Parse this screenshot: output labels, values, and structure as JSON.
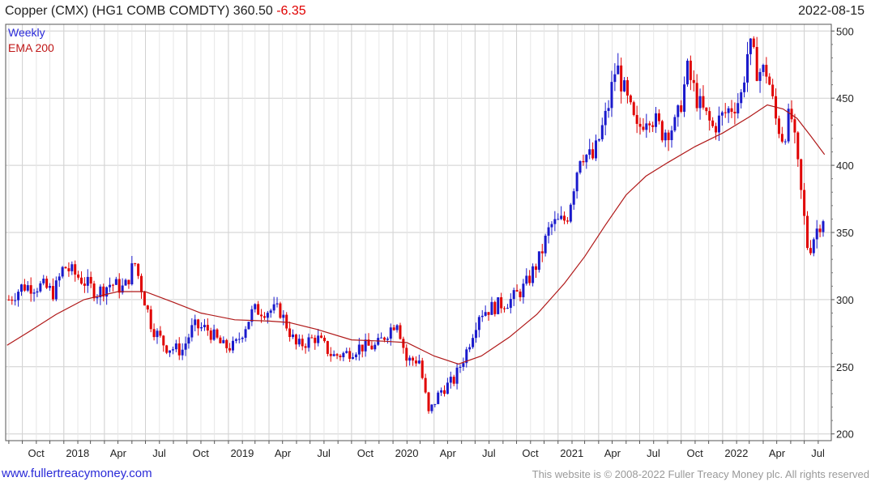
{
  "header": {
    "title": "Copper (CMX) (HG1 COMB COMDTY) 360.50",
    "change": "-6.35",
    "date": "2022-08-15"
  },
  "footer": {
    "site": "www.fullertreacymoney.com",
    "copyright": "This website is © 2008-2022 Fuller Treacy Money plc. All rights reserved"
  },
  "colors": {
    "up": "#1a1acc",
    "down": "#e00000",
    "ema": "#b01818",
    "grid": "#dcdcdc"
  },
  "chart_data": {
    "type": "line",
    "legend": [
      "Weekly",
      "EMA 200"
    ],
    "legend_placement": "top-left",
    "grid": true,
    "y_axis_side": "right",
    "ylim": [
      195,
      505
    ],
    "y_ticks": [
      200,
      250,
      300,
      350,
      400,
      450,
      500
    ],
    "x_range": [
      "2017-08-25",
      "2022-08-30"
    ],
    "x_ticks": [
      {
        "date": "2017-10-01",
        "label": "Oct"
      },
      {
        "date": "2018-01-01",
        "label": "2018"
      },
      {
        "date": "2018-04-01",
        "label": "Apr"
      },
      {
        "date": "2018-07-01",
        "label": "Jul"
      },
      {
        "date": "2018-10-01",
        "label": "Oct"
      },
      {
        "date": "2019-01-01",
        "label": "2019"
      },
      {
        "date": "2019-04-01",
        "label": "Apr"
      },
      {
        "date": "2019-07-01",
        "label": "Jul"
      },
      {
        "date": "2019-10-01",
        "label": "Oct"
      },
      {
        "date": "2020-01-01",
        "label": "2020"
      },
      {
        "date": "2020-04-01",
        "label": "Apr"
      },
      {
        "date": "2020-07-01",
        "label": "Jul"
      },
      {
        "date": "2020-10-01",
        "label": "Oct"
      },
      {
        "date": "2021-01-01",
        "label": "2021"
      },
      {
        "date": "2021-04-01",
        "label": "Apr"
      },
      {
        "date": "2021-07-01",
        "label": "Jul"
      },
      {
        "date": "2021-10-01",
        "label": "Oct"
      },
      {
        "date": "2022-01-01",
        "label": "2022"
      },
      {
        "date": "2022-04-01",
        "label": "Apr"
      },
      {
        "date": "2022-07-01",
        "label": "Jul"
      }
    ],
    "series": [
      {
        "name": "Weekly",
        "kind": "close",
        "points": [
          {
            "x": "2017-09-01",
            "y": 300
          },
          {
            "x": "2017-10-01",
            "y": 310
          },
          {
            "x": "2017-11-15",
            "y": 310
          },
          {
            "x": "2017-12-10",
            "y": 305
          },
          {
            "x": "2018-01-01",
            "y": 325
          },
          {
            "x": "2018-02-10",
            "y": 315
          },
          {
            "x": "2018-03-15",
            "y": 305
          },
          {
            "x": "2018-04-15",
            "y": 312
          },
          {
            "x": "2018-05-15",
            "y": 308
          },
          {
            "x": "2018-06-07",
            "y": 328
          },
          {
            "x": "2018-06-25",
            "y": 305
          },
          {
            "x": "2018-07-15",
            "y": 280
          },
          {
            "x": "2018-08-15",
            "y": 265
          },
          {
            "x": "2018-09-20",
            "y": 262
          },
          {
            "x": "2018-10-15",
            "y": 280
          },
          {
            "x": "2018-11-15",
            "y": 278
          },
          {
            "x": "2018-12-20",
            "y": 265
          },
          {
            "x": "2019-01-15",
            "y": 265
          },
          {
            "x": "2019-02-25",
            "y": 292
          },
          {
            "x": "2019-04-05",
            "y": 292
          },
          {
            "x": "2019-04-25",
            "y": 292
          },
          {
            "x": "2019-06-01",
            "y": 265
          },
          {
            "x": "2019-07-15",
            "y": 272
          },
          {
            "x": "2019-08-20",
            "y": 258
          },
          {
            "x": "2019-09-20",
            "y": 260
          },
          {
            "x": "2019-10-20",
            "y": 265
          },
          {
            "x": "2019-11-25",
            "y": 265
          },
          {
            "x": "2020-01-10",
            "y": 285
          },
          {
            "x": "2020-01-31",
            "y": 255
          },
          {
            "x": "2020-02-28",
            "y": 255
          },
          {
            "x": "2020-03-20",
            "y": 215
          },
          {
            "x": "2020-04-15",
            "y": 232
          },
          {
            "x": "2020-05-15",
            "y": 240
          },
          {
            "x": "2020-06-10",
            "y": 260
          },
          {
            "x": "2020-07-10",
            "y": 290
          },
          {
            "x": "2020-08-15",
            "y": 295
          },
          {
            "x": "2020-09-20",
            "y": 300
          },
          {
            "x": "2020-10-20",
            "y": 310
          },
          {
            "x": "2020-11-20",
            "y": 330
          },
          {
            "x": "2020-12-15",
            "y": 355
          },
          {
            "x": "2021-01-20",
            "y": 360
          },
          {
            "x": "2021-02-20",
            "y": 410
          },
          {
            "x": "2021-03-20",
            "y": 405
          },
          {
            "x": "2021-04-20",
            "y": 440
          },
          {
            "x": "2021-05-10",
            "y": 475
          },
          {
            "x": "2021-06-01",
            "y": 450
          },
          {
            "x": "2021-06-25",
            "y": 425
          },
          {
            "x": "2021-07-20",
            "y": 440
          },
          {
            "x": "2021-08-20",
            "y": 425
          },
          {
            "x": "2021-09-20",
            "y": 430
          },
          {
            "x": "2021-10-15",
            "y": 470
          },
          {
            "x": "2021-11-10",
            "y": 445
          },
          {
            "x": "2021-12-10",
            "y": 428
          },
          {
            "x": "2022-01-10",
            "y": 440
          },
          {
            "x": "2022-02-10",
            "y": 450
          },
          {
            "x": "2022-02-28",
            "y": 490
          },
          {
            "x": "2022-03-20",
            "y": 470
          },
          {
            "x": "2022-04-10",
            "y": 470
          },
          {
            "x": "2022-04-28",
            "y": 435
          },
          {
            "x": "2022-05-15",
            "y": 420
          },
          {
            "x": "2022-06-01",
            "y": 440
          },
          {
            "x": "2022-06-20",
            "y": 390
          },
          {
            "x": "2022-07-10",
            "y": 335
          },
          {
            "x": "2022-07-25",
            "y": 350
          },
          {
            "x": "2022-08-12",
            "y": 362
          }
        ]
      },
      {
        "name": "EMA 200",
        "kind": "line",
        "points": [
          {
            "x": "2017-08-28",
            "y": 266
          },
          {
            "x": "2017-10-15",
            "y": 276
          },
          {
            "x": "2017-12-15",
            "y": 289
          },
          {
            "x": "2018-02-15",
            "y": 300
          },
          {
            "x": "2018-05-01",
            "y": 306
          },
          {
            "x": "2018-06-30",
            "y": 306
          },
          {
            "x": "2018-09-01",
            "y": 298
          },
          {
            "x": "2018-11-01",
            "y": 290
          },
          {
            "x": "2019-01-15",
            "y": 285
          },
          {
            "x": "2019-04-01",
            "y": 284
          },
          {
            "x": "2019-05-15",
            "y": 283
          },
          {
            "x": "2019-07-15",
            "y": 278
          },
          {
            "x": "2019-10-01",
            "y": 270
          },
          {
            "x": "2019-12-15",
            "y": 269
          },
          {
            "x": "2020-02-01",
            "y": 268
          },
          {
            "x": "2020-04-01",
            "y": 258
          },
          {
            "x": "2020-05-25",
            "y": 252
          },
          {
            "x": "2020-07-15",
            "y": 258
          },
          {
            "x": "2020-09-15",
            "y": 272
          },
          {
            "x": "2020-11-15",
            "y": 289
          },
          {
            "x": "2021-01-15",
            "y": 312
          },
          {
            "x": "2021-03-01",
            "y": 332
          },
          {
            "x": "2021-04-15",
            "y": 355
          },
          {
            "x": "2021-06-01",
            "y": 378
          },
          {
            "x": "2021-07-15",
            "y": 392
          },
          {
            "x": "2021-09-01",
            "y": 402
          },
          {
            "x": "2021-11-01",
            "y": 414
          },
          {
            "x": "2022-01-01",
            "y": 424
          },
          {
            "x": "2022-03-01",
            "y": 436
          },
          {
            "x": "2022-04-10",
            "y": 445
          },
          {
            "x": "2022-05-15",
            "y": 442
          },
          {
            "x": "2022-06-15",
            "y": 435
          },
          {
            "x": "2022-07-15",
            "y": 422
          },
          {
            "x": "2022-08-15",
            "y": 408
          }
        ]
      }
    ]
  }
}
